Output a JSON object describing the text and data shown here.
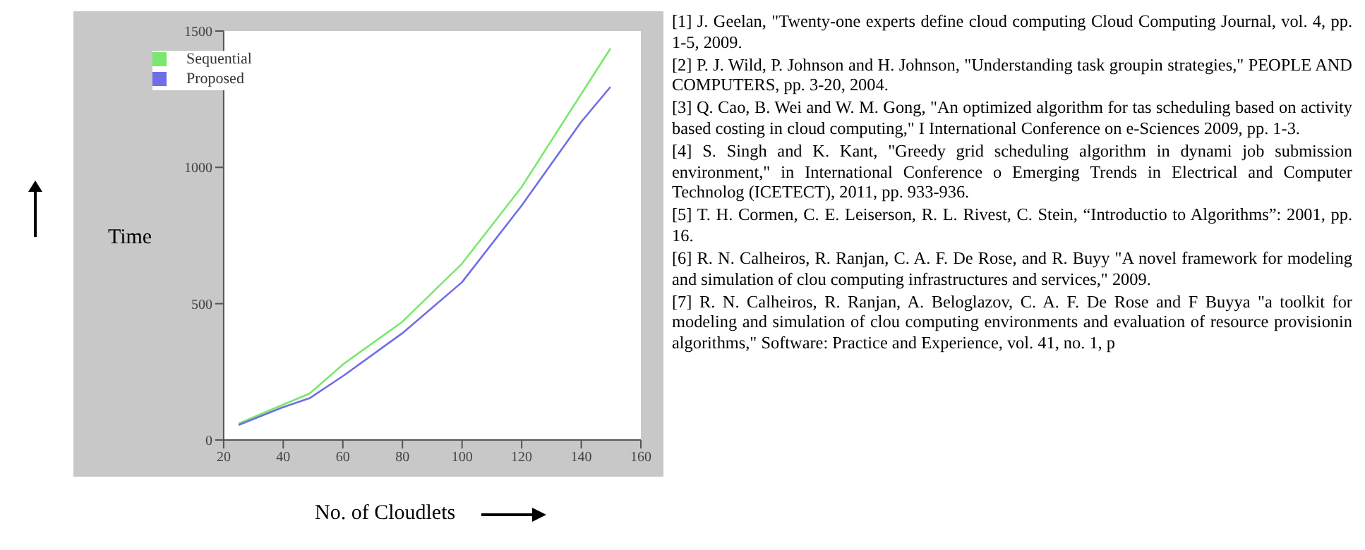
{
  "chart_data": {
    "type": "line",
    "xlabel": "No. of Cloudlets",
    "ylabel": "Time",
    "xlim": [
      20,
      160
    ],
    "xticks": [
      20,
      40,
      60,
      80,
      100,
      120,
      140,
      160
    ],
    "ylim": [
      0,
      1500
    ],
    "yticks": [
      0,
      500,
      1000,
      1500
    ],
    "legend": "top left",
    "marker": "none",
    "line_style": "solid",
    "series": [
      {
        "name": "Sequential",
        "color": "#7ae86e",
        "x": [
          25,
          39.6,
          48.8,
          60.5,
          80,
          100,
          120,
          140,
          149.8
        ],
        "values": [
          60,
          128,
          170,
          281,
          434,
          647,
          928,
          1269,
          1436
        ]
      },
      {
        "name": "Proposed",
        "color": "#6f6ee6",
        "x": [
          25,
          39.6,
          48.8,
          60.5,
          80,
          100,
          120,
          140,
          149.8
        ],
        "values": [
          55,
          119,
          153,
          238,
          392,
          579,
          860,
          1167,
          1295
        ]
      }
    ],
    "annotations": [
      "[1] J. Geelan, \"Twenty-one experts define cloud computing Cloud Computing Journal, vol. 4, pp. 1-5, 2009.",
      "[2] P. J. Wild, P. Johnson and H. Johnson, \"Understanding task groupin strategies,\" PEOPLE AND COMPUTERS, pp. 3-20, 2004.",
      "[3] Q. Cao, B. Wei and W. M. Gong, \"An optimized algorithm for tas scheduling based on activity based costing in cloud computing,\" I International Conference on e-Sciences 2009, pp. 1-3.",
      "[4] S. Singh and K. Kant, \"Greedy grid scheduling algorithm in dynami job submission environment,\" in International Conference o Emerging Trends in Electrical and Computer Technolog (ICETECT), 2011, pp. 933-936.",
      "[5] T. H. Cormen, C. E. Leiserson, R. L. Rivest, C. Stein, “Introductio to Algorithms”: 2001, pp. 16.",
      "[6] R. N. Calheiros, R. Ranjan, C. A. F. De Rose, and R. Buyy \"A novel framework for modeling and simulation of clou computing infrastructures and services,\" 2009.",
      "[7] R. N. Calheiros, R. Ranjan, A. Beloglazov, C. A. F. De Rose and F Buyya \"a toolkit for modeling and simulation of clou computing environments and evaluation of resource provisionin algorithms,\" Software: Practice and Experience, vol. 41, no. 1, p"
    ]
  }
}
